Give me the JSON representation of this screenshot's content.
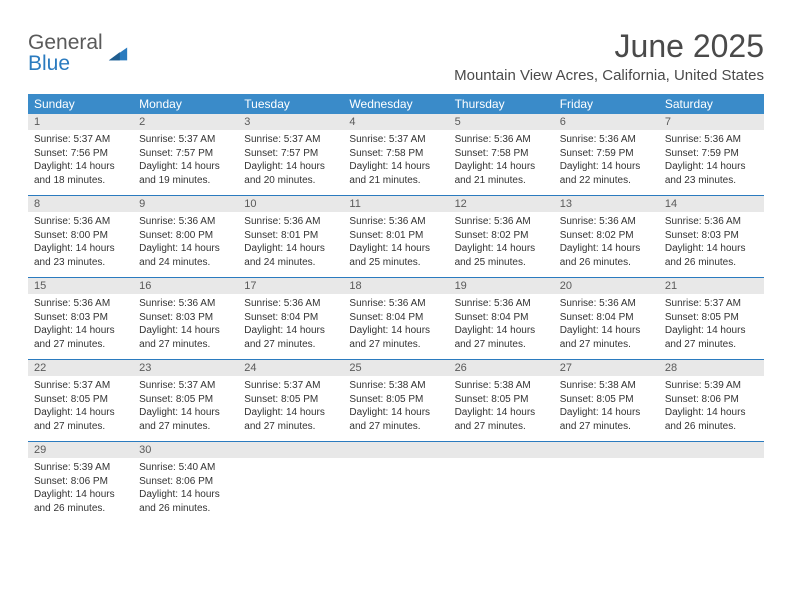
{
  "logo": {
    "word1": "General",
    "word2": "Blue",
    "tri_color": "#2b7bbf"
  },
  "title": "June 2025",
  "location": "Mountain View Acres, California, United States",
  "colors": {
    "header_bg": "#3a8bc9",
    "daynum_bg": "#e8e8e8",
    "rule": "#2b7bbf",
    "text": "#333333",
    "muted": "#5a5a5a"
  },
  "fonts": {
    "title_size": 32,
    "location_size": 15,
    "dow_size": 12,
    "daynum_size": 11,
    "body_size": 10
  },
  "day_names": [
    "Sunday",
    "Monday",
    "Tuesday",
    "Wednesday",
    "Thursday",
    "Friday",
    "Saturday"
  ],
  "weeks": [
    [
      {
        "n": "1",
        "rise": "Sunrise: 5:37 AM",
        "set": "Sunset: 7:56 PM",
        "d1": "Daylight: 14 hours",
        "d2": "and 18 minutes."
      },
      {
        "n": "2",
        "rise": "Sunrise: 5:37 AM",
        "set": "Sunset: 7:57 PM",
        "d1": "Daylight: 14 hours",
        "d2": "and 19 minutes."
      },
      {
        "n": "3",
        "rise": "Sunrise: 5:37 AM",
        "set": "Sunset: 7:57 PM",
        "d1": "Daylight: 14 hours",
        "d2": "and 20 minutes."
      },
      {
        "n": "4",
        "rise": "Sunrise: 5:37 AM",
        "set": "Sunset: 7:58 PM",
        "d1": "Daylight: 14 hours",
        "d2": "and 21 minutes."
      },
      {
        "n": "5",
        "rise": "Sunrise: 5:36 AM",
        "set": "Sunset: 7:58 PM",
        "d1": "Daylight: 14 hours",
        "d2": "and 21 minutes."
      },
      {
        "n": "6",
        "rise": "Sunrise: 5:36 AM",
        "set": "Sunset: 7:59 PM",
        "d1": "Daylight: 14 hours",
        "d2": "and 22 minutes."
      },
      {
        "n": "7",
        "rise": "Sunrise: 5:36 AM",
        "set": "Sunset: 7:59 PM",
        "d1": "Daylight: 14 hours",
        "d2": "and 23 minutes."
      }
    ],
    [
      {
        "n": "8",
        "rise": "Sunrise: 5:36 AM",
        "set": "Sunset: 8:00 PM",
        "d1": "Daylight: 14 hours",
        "d2": "and 23 minutes."
      },
      {
        "n": "9",
        "rise": "Sunrise: 5:36 AM",
        "set": "Sunset: 8:00 PM",
        "d1": "Daylight: 14 hours",
        "d2": "and 24 minutes."
      },
      {
        "n": "10",
        "rise": "Sunrise: 5:36 AM",
        "set": "Sunset: 8:01 PM",
        "d1": "Daylight: 14 hours",
        "d2": "and 24 minutes."
      },
      {
        "n": "11",
        "rise": "Sunrise: 5:36 AM",
        "set": "Sunset: 8:01 PM",
        "d1": "Daylight: 14 hours",
        "d2": "and 25 minutes."
      },
      {
        "n": "12",
        "rise": "Sunrise: 5:36 AM",
        "set": "Sunset: 8:02 PM",
        "d1": "Daylight: 14 hours",
        "d2": "and 25 minutes."
      },
      {
        "n": "13",
        "rise": "Sunrise: 5:36 AM",
        "set": "Sunset: 8:02 PM",
        "d1": "Daylight: 14 hours",
        "d2": "and 26 minutes."
      },
      {
        "n": "14",
        "rise": "Sunrise: 5:36 AM",
        "set": "Sunset: 8:03 PM",
        "d1": "Daylight: 14 hours",
        "d2": "and 26 minutes."
      }
    ],
    [
      {
        "n": "15",
        "rise": "Sunrise: 5:36 AM",
        "set": "Sunset: 8:03 PM",
        "d1": "Daylight: 14 hours",
        "d2": "and 27 minutes."
      },
      {
        "n": "16",
        "rise": "Sunrise: 5:36 AM",
        "set": "Sunset: 8:03 PM",
        "d1": "Daylight: 14 hours",
        "d2": "and 27 minutes."
      },
      {
        "n": "17",
        "rise": "Sunrise: 5:36 AM",
        "set": "Sunset: 8:04 PM",
        "d1": "Daylight: 14 hours",
        "d2": "and 27 minutes."
      },
      {
        "n": "18",
        "rise": "Sunrise: 5:36 AM",
        "set": "Sunset: 8:04 PM",
        "d1": "Daylight: 14 hours",
        "d2": "and 27 minutes."
      },
      {
        "n": "19",
        "rise": "Sunrise: 5:36 AM",
        "set": "Sunset: 8:04 PM",
        "d1": "Daylight: 14 hours",
        "d2": "and 27 minutes."
      },
      {
        "n": "20",
        "rise": "Sunrise: 5:36 AM",
        "set": "Sunset: 8:04 PM",
        "d1": "Daylight: 14 hours",
        "d2": "and 27 minutes."
      },
      {
        "n": "21",
        "rise": "Sunrise: 5:37 AM",
        "set": "Sunset: 8:05 PM",
        "d1": "Daylight: 14 hours",
        "d2": "and 27 minutes."
      }
    ],
    [
      {
        "n": "22",
        "rise": "Sunrise: 5:37 AM",
        "set": "Sunset: 8:05 PM",
        "d1": "Daylight: 14 hours",
        "d2": "and 27 minutes."
      },
      {
        "n": "23",
        "rise": "Sunrise: 5:37 AM",
        "set": "Sunset: 8:05 PM",
        "d1": "Daylight: 14 hours",
        "d2": "and 27 minutes."
      },
      {
        "n": "24",
        "rise": "Sunrise: 5:37 AM",
        "set": "Sunset: 8:05 PM",
        "d1": "Daylight: 14 hours",
        "d2": "and 27 minutes."
      },
      {
        "n": "25",
        "rise": "Sunrise: 5:38 AM",
        "set": "Sunset: 8:05 PM",
        "d1": "Daylight: 14 hours",
        "d2": "and 27 minutes."
      },
      {
        "n": "26",
        "rise": "Sunrise: 5:38 AM",
        "set": "Sunset: 8:05 PM",
        "d1": "Daylight: 14 hours",
        "d2": "and 27 minutes."
      },
      {
        "n": "27",
        "rise": "Sunrise: 5:38 AM",
        "set": "Sunset: 8:05 PM",
        "d1": "Daylight: 14 hours",
        "d2": "and 27 minutes."
      },
      {
        "n": "28",
        "rise": "Sunrise: 5:39 AM",
        "set": "Sunset: 8:06 PM",
        "d1": "Daylight: 14 hours",
        "d2": "and 26 minutes."
      }
    ],
    [
      {
        "n": "29",
        "rise": "Sunrise: 5:39 AM",
        "set": "Sunset: 8:06 PM",
        "d1": "Daylight: 14 hours",
        "d2": "and 26 minutes."
      },
      {
        "n": "30",
        "rise": "Sunrise: 5:40 AM",
        "set": "Sunset: 8:06 PM",
        "d1": "Daylight: 14 hours",
        "d2": "and 26 minutes."
      },
      null,
      null,
      null,
      null,
      null
    ]
  ]
}
